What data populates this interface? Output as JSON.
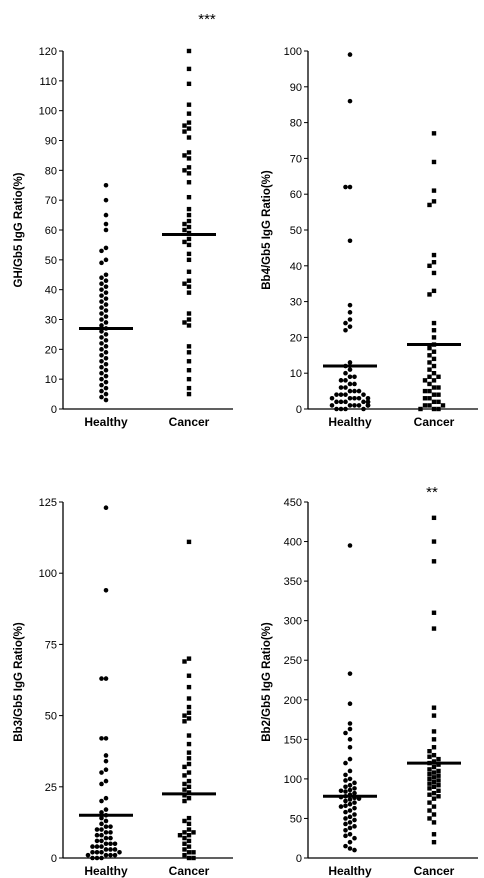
{
  "chart_data": [
    {
      "type": "scatter",
      "title": "",
      "ylabel": "GH/Gb5 IgG Ratio(%)",
      "xlabel": "",
      "categories": [
        "Healthy",
        "Cancer"
      ],
      "ylim": [
        0,
        120
      ],
      "yticks": [
        "0",
        "10",
        "20",
        "30",
        "40",
        "50",
        "60",
        "70",
        "80",
        "90",
        "100",
        "110",
        "120"
      ],
      "significance": "***",
      "series": [
        {
          "marker": "circle",
          "mean": 27,
          "values": [
            75,
            70,
            65,
            62,
            60,
            54,
            53,
            50,
            49,
            45,
            44,
            43,
            42,
            41,
            40,
            39,
            38,
            37,
            36,
            35,
            34,
            33,
            32,
            31,
            30,
            29,
            28,
            27,
            26,
            25,
            24,
            23,
            22,
            21,
            20,
            19,
            18,
            17,
            16,
            15,
            14,
            13,
            12,
            11,
            10,
            9,
            8,
            7,
            6,
            5,
            4,
            3
          ]
        },
        {
          "marker": "square",
          "mean": 58.5,
          "values": [
            120,
            114,
            109,
            102,
            99,
            96,
            95,
            94,
            93,
            91,
            86,
            85,
            84,
            81,
            80,
            79,
            76,
            71,
            67,
            65,
            63,
            62,
            61,
            60,
            59,
            57,
            56,
            55,
            52,
            50,
            46,
            43,
            42,
            41,
            39,
            32,
            30,
            29,
            28,
            21,
            19,
            16,
            13,
            10,
            7,
            5
          ]
        }
      ]
    },
    {
      "type": "scatter",
      "title": "",
      "ylabel": "Bb4/Gb5 IgG Ratio(%)",
      "xlabel": "",
      "categories": [
        "Healthy",
        "Cancer"
      ],
      "ylim": [
        0,
        100
      ],
      "yticks": [
        "0",
        "10",
        "20",
        "30",
        "40",
        "50",
        "60",
        "70",
        "80",
        "90",
        "100"
      ],
      "significance": "",
      "series": [
        {
          "marker": "circle",
          "mean": 12,
          "values": [
            99,
            86,
            62,
            62,
            47,
            29,
            27,
            25,
            24,
            23,
            22,
            13,
            12,
            11,
            10,
            9,
            9,
            8,
            8,
            7,
            7,
            6,
            6,
            5,
            5,
            5,
            4,
            4,
            4,
            4,
            3,
            3,
            3,
            3,
            3,
            2,
            2,
            2,
            2,
            2,
            2,
            1,
            1,
            1,
            1,
            1,
            1,
            1,
            0,
            0,
            0,
            0
          ]
        },
        {
          "marker": "square",
          "mean": 18,
          "values": [
            77,
            69,
            61,
            58,
            57,
            43,
            41,
            40,
            38,
            33,
            32,
            24,
            22,
            20,
            18,
            17,
            16,
            15,
            14,
            13,
            12,
            11,
            10,
            9,
            9,
            8,
            8,
            7,
            6,
            6,
            5,
            5,
            4,
            4,
            3,
            3,
            2,
            2,
            1,
            1,
            1,
            0,
            0,
            0
          ]
        }
      ]
    },
    {
      "type": "scatter",
      "title": "",
      "ylabel": "Bb3/Gb5 IgG Ratio(%)",
      "xlabel": "",
      "categories": [
        "Healthy",
        "Cancer"
      ],
      "ylim": [
        0,
        125
      ],
      "yticks": [
        "0",
        "25",
        "50",
        "75",
        "100",
        "125"
      ],
      "significance": "",
      "series": [
        {
          "marker": "circle",
          "mean": 15,
          "values": [
            123,
            94,
            63,
            63,
            42,
            42,
            36,
            34,
            31,
            30,
            27,
            26,
            21,
            20,
            17,
            16,
            15,
            14,
            13,
            12,
            11,
            11,
            10,
            10,
            9,
            9,
            8,
            8,
            7,
            7,
            6,
            6,
            5,
            5,
            5,
            4,
            4,
            4,
            3,
            3,
            3,
            2,
            2,
            2,
            2,
            1,
            1,
            1,
            1,
            0,
            0,
            0
          ]
        },
        {
          "marker": "square",
          "mean": 22.5,
          "values": [
            111,
            70,
            69,
            64,
            60,
            56,
            53,
            51,
            50,
            49,
            48,
            43,
            40,
            37,
            35,
            33,
            32,
            30,
            29,
            27,
            26,
            25,
            24,
            23,
            22,
            21,
            20,
            14,
            13,
            12,
            10,
            9,
            9,
            8,
            8,
            7,
            6,
            5,
            4,
            3,
            2,
            2,
            1,
            0,
            0
          ]
        }
      ]
    },
    {
      "type": "scatter",
      "title": "",
      "ylabel": "Bb2/Gb5 IgG Ratio(%)",
      "xlabel": "",
      "categories": [
        "Healthy",
        "Cancer"
      ],
      "ylim": [
        0,
        450
      ],
      "yticks": [
        "0",
        "50",
        "100",
        "150",
        "200",
        "250",
        "300",
        "350",
        "400",
        "450"
      ],
      "significance": "**",
      "series": [
        {
          "marker": "circle",
          "mean": 78,
          "values": [
            395,
            233,
            195,
            170,
            163,
            158,
            150,
            140,
            125,
            120,
            110,
            105,
            100,
            98,
            95,
            92,
            90,
            88,
            86,
            85,
            84,
            82,
            80,
            78,
            77,
            76,
            75,
            74,
            72,
            70,
            68,
            66,
            65,
            63,
            60,
            58,
            55,
            52,
            50,
            48,
            45,
            43,
            40,
            38,
            35,
            30,
            28,
            25,
            20,
            15,
            12,
            10
          ]
        },
        {
          "marker": "square",
          "mean": 120,
          "values": [
            430,
            400,
            375,
            310,
            290,
            190,
            180,
            160,
            150,
            140,
            135,
            130,
            128,
            125,
            122,
            120,
            118,
            115,
            112,
            110,
            108,
            106,
            104,
            102,
            100,
            98,
            96,
            94,
            92,
            90,
            88,
            85,
            82,
            80,
            78,
            75,
            70,
            65,
            60,
            55,
            50,
            45,
            30,
            20
          ]
        }
      ]
    }
  ]
}
